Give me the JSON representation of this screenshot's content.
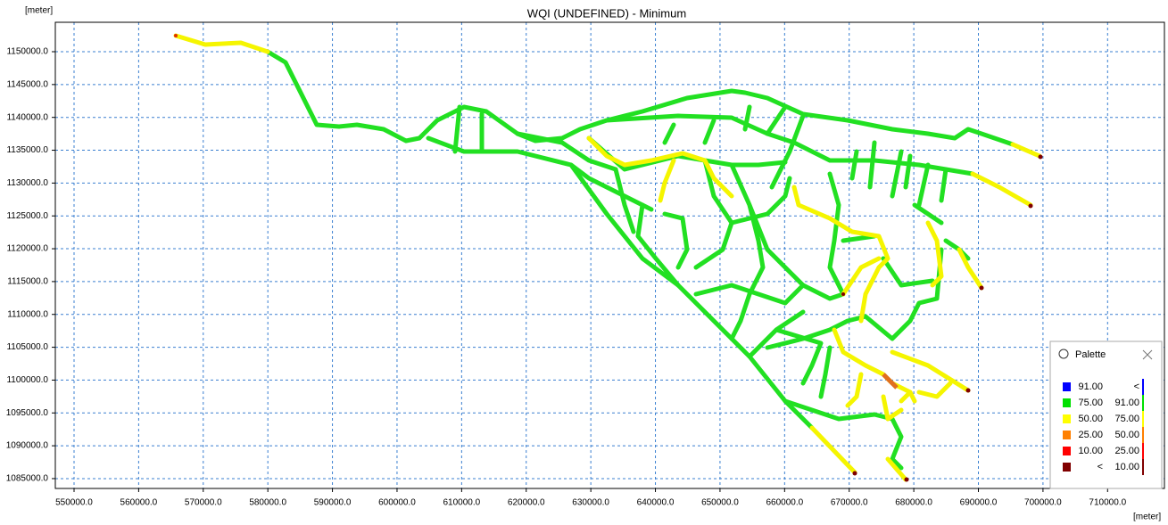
{
  "chart_data": {
    "type": "map",
    "title": "WQI (UNDEFINED) - Minimum",
    "y_label": "[meter]",
    "x_label": "[meter]",
    "xlim": [
      547100,
      718800
    ],
    "ylim": [
      1083500,
      1154480
    ],
    "grid": true,
    "xticks": [
      {
        "value": 550000,
        "label": "550000.0"
      },
      {
        "value": 560000,
        "label": "560000.0"
      },
      {
        "value": 570000,
        "label": "570000.0"
      },
      {
        "value": 580000,
        "label": "580000.0"
      },
      {
        "value": 590000,
        "label": "590000.0"
      },
      {
        "value": 600000,
        "label": "600000.0"
      },
      {
        "value": 610000,
        "label": "610000.0"
      },
      {
        "value": 620000,
        "label": "620000.0"
      },
      {
        "value": 630000,
        "label": "630000.0"
      },
      {
        "value": 640000,
        "label": "640000.0"
      },
      {
        "value": 650000,
        "label": "650000.0"
      },
      {
        "value": 660000,
        "label": "660000.0"
      },
      {
        "value": 670000,
        "label": "670000.0"
      },
      {
        "value": 680000,
        "label": "680000.0"
      },
      {
        "value": 690000,
        "label": "690000.0"
      },
      {
        "value": 700000,
        "label": "700000.0"
      },
      {
        "value": 710000,
        "label": "710000.0"
      }
    ],
    "yticks": [
      {
        "value": 1085000,
        "label": "1085000.0"
      },
      {
        "value": 1090000,
        "label": "1090000.0"
      },
      {
        "value": 1095000,
        "label": "1095000.0"
      },
      {
        "value": 1100000,
        "label": "1100000.0"
      },
      {
        "value": 1105000,
        "label": "1105000.0"
      },
      {
        "value": 1110000,
        "label": "1110000.0"
      },
      {
        "value": 1115000,
        "label": "1115000.0"
      },
      {
        "value": 1120000,
        "label": "1120000.0"
      },
      {
        "value": 1125000,
        "label": "1125000.0"
      },
      {
        "value": 1130000,
        "label": "1130000.0"
      },
      {
        "value": 1135000,
        "label": "1135000.0"
      },
      {
        "value": 1140000,
        "label": "1140000.0"
      },
      {
        "value": 1145000,
        "label": "1145000.0"
      },
      {
        "value": 1150000,
        "label": "1150000.0"
      }
    ],
    "palette": {
      "title": "Palette",
      "entries": [
        {
          "color": "#0000ff",
          "low": "91.00",
          "high": "<"
        },
        {
          "color": "#00e000",
          "low": "75.00",
          "high": "91.00"
        },
        {
          "color": "#ffff00",
          "low": "50.00",
          "high": "75.00"
        },
        {
          "color": "#ff8000",
          "low": "25.00",
          "high": "50.00"
        },
        {
          "color": "#ff0000",
          "low": "10.00",
          "high": "25.00"
        },
        {
          "color": "#800000",
          "low": "<",
          "high": "10.00"
        }
      ]
    }
  }
}
